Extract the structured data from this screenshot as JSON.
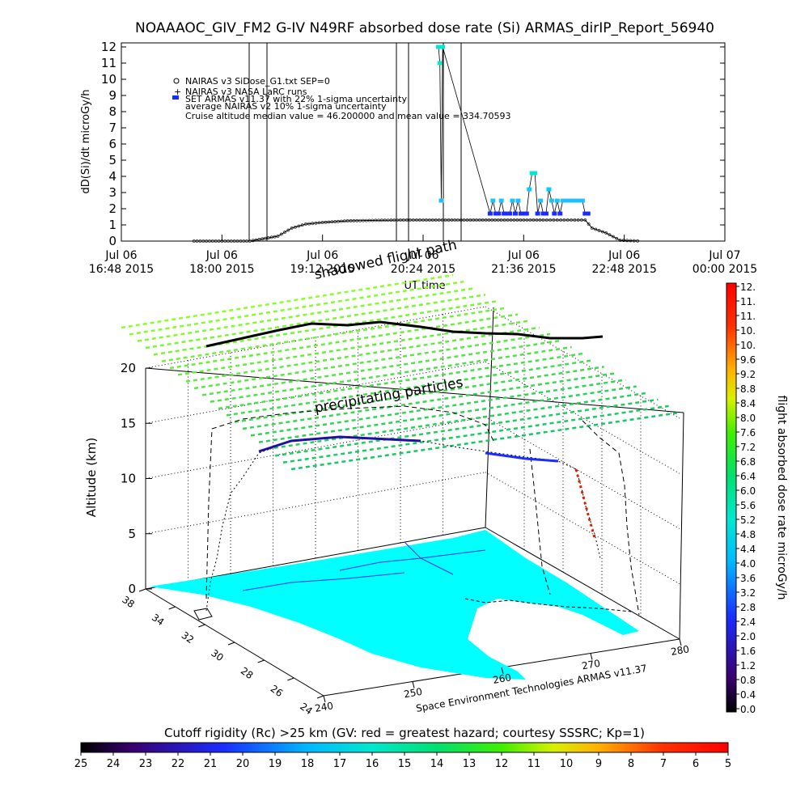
{
  "chart_data": [
    {
      "type": "scatter",
      "title": "NOAAAOC_GIV_FM2 G-IV    N49RF  absorbed dose rate (Si) ARMAS_dirIP_Report_56940",
      "ylabel": "dD(Si)/dt microGy/h",
      "xlabel": "UT time",
      "ylim": [
        0,
        12
      ],
      "yticks": [
        "0",
        "1",
        "2",
        "3",
        "4",
        "5",
        "6",
        "7",
        "8",
        "9",
        "10",
        "11",
        "12"
      ],
      "xticks": [
        {
          "day": "Jul 06",
          "time": "16:48 2015"
        },
        {
          "day": "Jul 06",
          "time": "18:00 2015"
        },
        {
          "day": "Jul 06",
          "time": "19:12 2015"
        },
        {
          "day": "Jul 06",
          "time": "20:24 2015"
        },
        {
          "day": "Jul 06",
          "time": "21:36 2015"
        },
        {
          "day": "Jul 06",
          "time": "22:48 2015"
        },
        {
          "day": "Jul 07",
          "time": "00:00 2015"
        }
      ],
      "legend": [
        "NAIRAS v3 SiDose_G1.txt SEP=0",
        "NAIRAS v3 NASA LaRC runs",
        "SET ARMAS v11.37 with 22% 1-sigma uncertainty",
        "average NAIRAS v2 10% 1-sigma uncertainty",
        "Cruise altitude median value = 46.200000 and mean value = 334.70593"
      ],
      "series": [
        {
          "name": "NAIRAS v3 SiDose_G1.txt SEP=0",
          "x": [
            "17:40",
            "18:00",
            "18:20",
            "18:40",
            "18:50",
            "19:00",
            "19:12",
            "19:30",
            "19:50",
            "20:10",
            "20:24",
            "20:40",
            "21:00",
            "21:20",
            "21:36",
            "21:50",
            "22:05",
            "22:20",
            "22:25",
            "22:35",
            "22:45",
            "23:00"
          ],
          "y": [
            0,
            0,
            0,
            0.3,
            0.8,
            1.05,
            1.15,
            1.25,
            1.28,
            1.3,
            1.3,
            1.3,
            1.3,
            1.3,
            1.3,
            1.3,
            1.3,
            1.3,
            0.8,
            0.5,
            0.05,
            0
          ]
        },
        {
          "name": "SET ARMAS v11.37 with 22% 1-sigma uncertainty",
          "x": [
            "20:35",
            "20:36",
            "20:37",
            "20:38",
            "21:12",
            "21:14",
            "21:16",
            "21:18",
            "21:20",
            "21:22",
            "21:24",
            "21:26",
            "21:28",
            "21:30",
            "21:32",
            "21:34",
            "21:36",
            "21:38",
            "21:40",
            "21:42",
            "21:44",
            "21:46",
            "21:48",
            "21:50",
            "21:52",
            "21:54",
            "21:56",
            "21:58",
            "22:00",
            "22:02",
            "22:04",
            "22:06",
            "22:08",
            "22:10",
            "22:12",
            "22:14",
            "22:16",
            "22:18",
            "22:20",
            "22:22"
          ],
          "y": [
            12,
            11,
            2.5,
            12,
            1.7,
            2.5,
            1.7,
            1.7,
            2.5,
            1.7,
            1.7,
            1.7,
            2.5,
            1.7,
            2.5,
            1.7,
            1.7,
            1.7,
            3.2,
            4.2,
            4.2,
            1.7,
            2.5,
            1.7,
            1.7,
            3.2,
            2.5,
            1.7,
            2.5,
            1.7,
            2.5,
            2.5,
            2.5,
            2.5,
            2.5,
            2.5,
            2.5,
            2.5,
            1.7,
            1.7
          ]
        }
      ]
    },
    {
      "type": "scatter",
      "zlabel": "Altitude (km)",
      "zticks": [
        "0",
        "5",
        "10",
        "15",
        "20"
      ],
      "lat_ticks": [
        "38",
        "34",
        "32",
        "30",
        "28",
        "26",
        "24"
      ],
      "lon_ticks": [
        "240",
        "250",
        "260",
        "270",
        "280"
      ],
      "annotations": [
        "shadowed flight path",
        "precipitating particles",
        "Space Environment Technologies ARMAS v11.37"
      ],
      "colorbar_title": "flight absorbed dose rate microGy/h",
      "colorbar_ticks": [
        "12.",
        "11.",
        "11.",
        "10.",
        "10.",
        "9.6",
        "9.2",
        "8.8",
        "8.4",
        "8.0",
        "7.6",
        "7.2",
        "6.8",
        "6.4",
        "6.0",
        "5.6",
        "5.2",
        "4.8",
        "4.4",
        "4.0",
        "3.6",
        "3.2",
        "2.8",
        "2.4",
        "2.0",
        "1.6",
        "1.2",
        "0.8",
        "0.4",
        "0.0"
      ],
      "footer_title": "Cutoff rigidity (Rc) >25 km (GV: red = greatest hazard; courtesy SSSRC; Kp=1)",
      "footer_ticks": [
        "25",
        "24",
        "23",
        "22",
        "21",
        "20",
        "19",
        "18",
        "17",
        "16",
        "15",
        "14",
        "13",
        "12",
        "11",
        "10",
        "9",
        "8",
        "7",
        "6",
        "5"
      ],
      "colors": {
        "map_fill": "#00ffff",
        "trajectory": "#000000"
      }
    }
  ]
}
